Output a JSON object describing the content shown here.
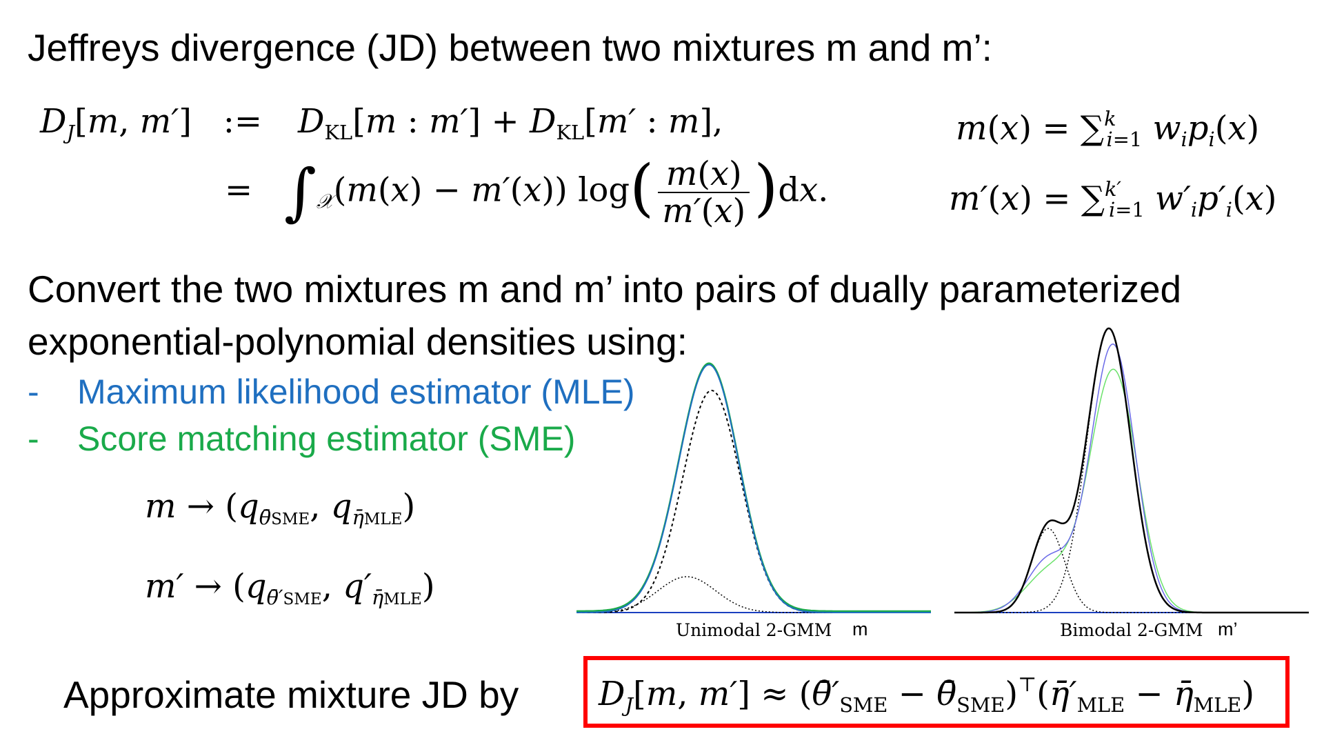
{
  "title": "Jeffreys divergence (JD) between two mixtures m and m’:",
  "paragraph_line1": "Convert the two mixtures m and m’ into pairs of dually parameterized",
  "paragraph_line2": "exponential-polynomial densities using:",
  "bullets": [
    {
      "dash": "-",
      "text": "Maximum likelihood estimator (MLE)",
      "color": "#1f6fc0"
    },
    {
      "dash": "-",
      "text": "Score matching estimator (SME)",
      "color": "#1aaa4a"
    }
  ],
  "approx_label": "Approximate mixture JD by",
  "plots": [
    {
      "caption": "Unimodal 2-GMM",
      "tag": "m"
    },
    {
      "caption": "Bimodal 2-GMM",
      "tag": "m’"
    }
  ],
  "colors": {
    "mle": "#1f6fc0",
    "sme": "#1aaa4a",
    "box": "#ff0000",
    "axis": "#1a3fbf"
  }
}
